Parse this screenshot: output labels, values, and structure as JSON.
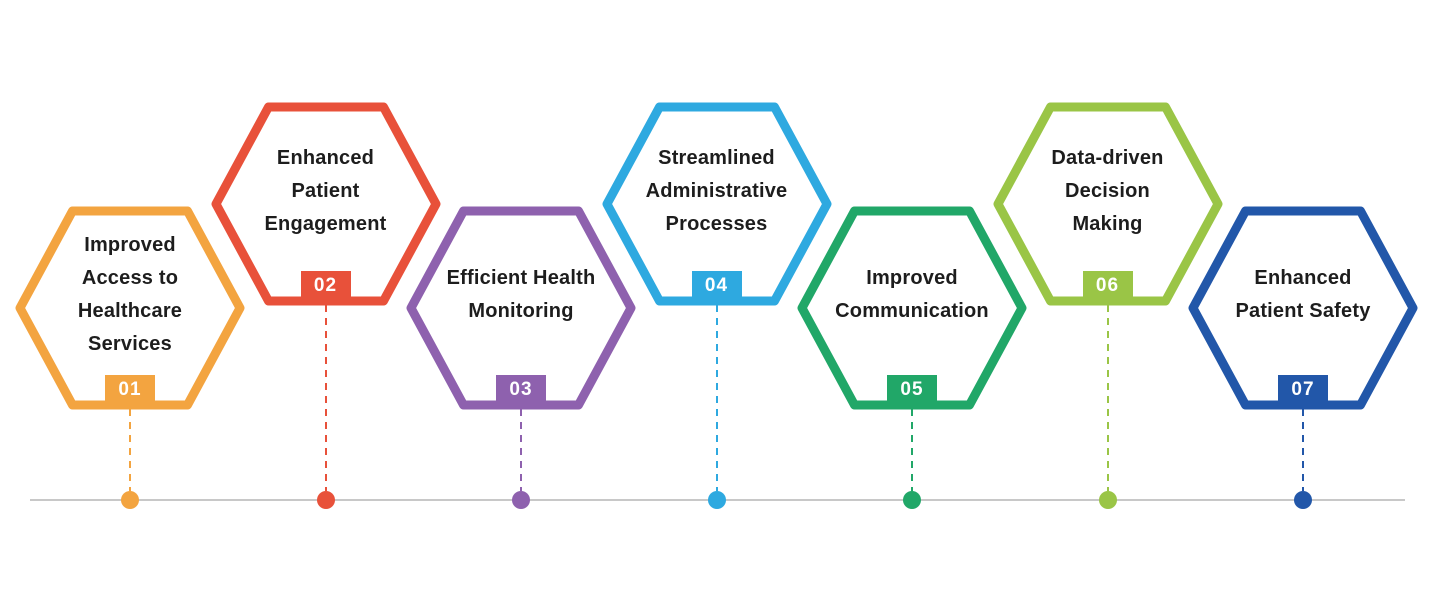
{
  "diagram": {
    "background_color": "#ffffff",
    "timeline_color": "#c8c8c8",
    "text_color": "#1d1d1d",
    "badge_text_color": "#ffffff"
  },
  "items": [
    {
      "number": "01",
      "label": "Improved Access to Healthcare Services",
      "lines": [
        "Improved",
        "Access to",
        "Healthcare",
        "Services"
      ],
      "color": "#F3A440"
    },
    {
      "number": "02",
      "label": "Enhanced Patient Engagement",
      "lines": [
        "Enhanced",
        "Patient",
        "Engagement"
      ],
      "color": "#E8513A"
    },
    {
      "number": "03",
      "label": "Efficient Health Monitoring",
      "lines": [
        "Efficient Health",
        "Monitoring"
      ],
      "color": "#8E61AE"
    },
    {
      "number": "04",
      "label": "Streamlined Administrative Processes",
      "lines": [
        "Streamlined",
        "Administrative",
        "Processes"
      ],
      "color": "#2EA9E0"
    },
    {
      "number": "05",
      "label": "Improved Communication",
      "lines": [
        "Improved",
        "Communication"
      ],
      "color": "#21A768"
    },
    {
      "number": "06",
      "label": "Data-driven Decision Making",
      "lines": [
        "Data-driven",
        "Decision",
        "Making"
      ],
      "color": "#9AC546"
    },
    {
      "number": "07",
      "label": "Enhanced Patient Safety",
      "lines": [
        "Enhanced",
        "Patient Safety"
      ],
      "color": "#2257A9"
    }
  ]
}
